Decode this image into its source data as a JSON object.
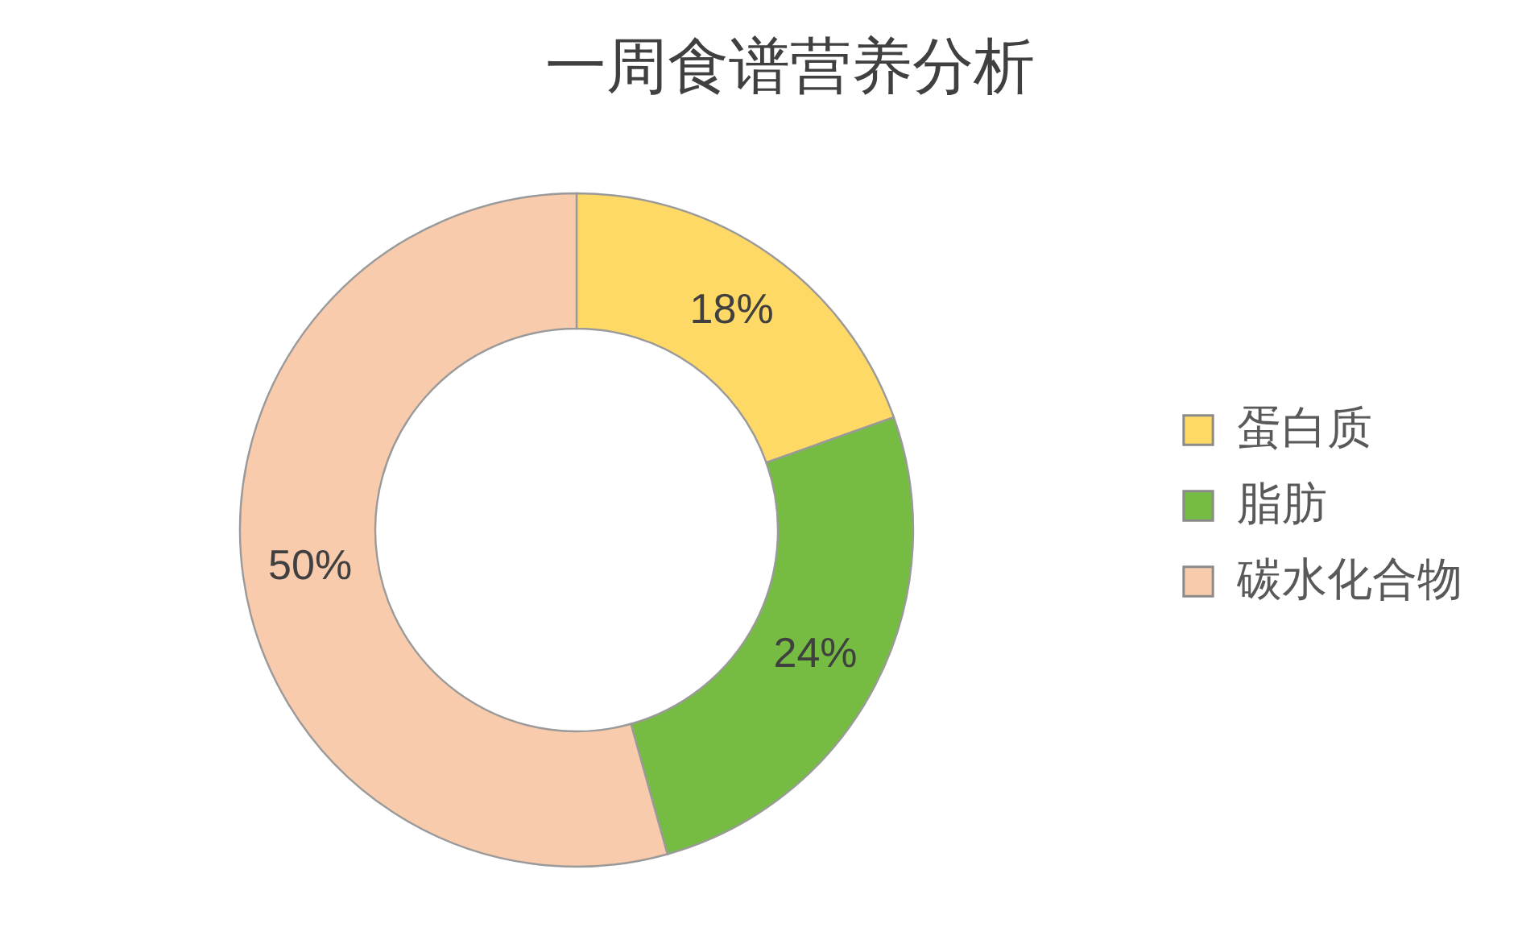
{
  "chart_data": {
    "type": "donut",
    "title": "一周食谱营养分析",
    "categories": [
      "蛋白质",
      "脂肪",
      "碳水化合物"
    ],
    "values": [
      18,
      24,
      50
    ],
    "colors": [
      "#fed966",
      "#76bc42",
      "#f8cbad"
    ],
    "value_labels": [
      "18%",
      "24%",
      "50%"
    ],
    "legend": "right"
  }
}
